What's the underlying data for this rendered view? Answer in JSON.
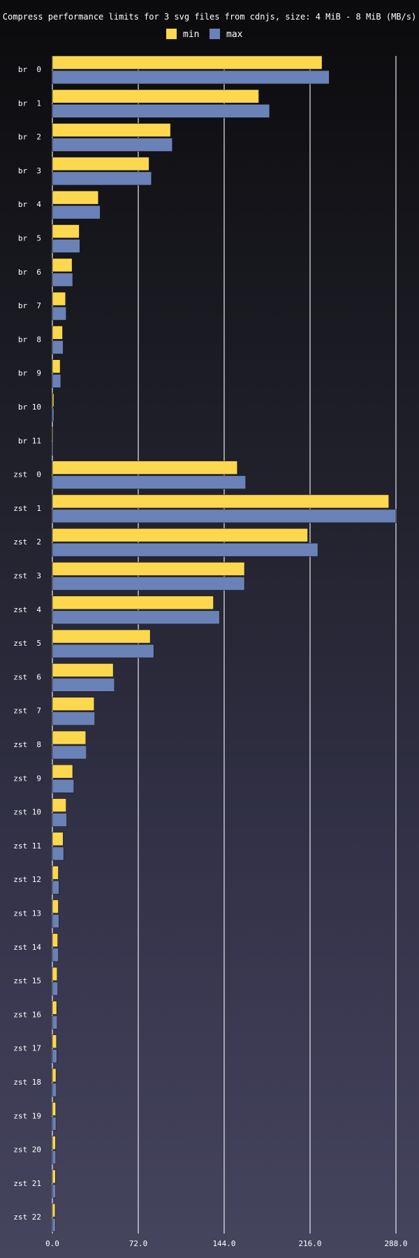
{
  "chart_data": {
    "type": "bar",
    "orientation": "horizontal",
    "title": "Compress performance limits for 3 svg files from cdnjs, size: 4 MiB - 8 MiB (MB/s)",
    "xlabel": "",
    "ylabel": "",
    "xlim": [
      0,
      288
    ],
    "ticks": [
      "0.0",
      "72.0",
      "144.0",
      "216.0",
      "288.0"
    ],
    "grid": true,
    "legend_position": "top-center",
    "categories": [
      "br  0",
      "br  1",
      "br  2",
      "br  3",
      "br  4",
      "br  5",
      "br  6",
      "br  7",
      "br  8",
      "br  9",
      "br 10",
      "br 11",
      "zst  0",
      "zst  1",
      "zst  2",
      "zst  3",
      "zst  4",
      "zst  5",
      "zst  6",
      "zst  7",
      "zst  8",
      "zst  9",
      "zst 10",
      "zst 11",
      "zst 12",
      "zst 13",
      "zst 14",
      "zst 15",
      "zst 16",
      "zst 17",
      "zst 18",
      "zst 19",
      "zst 20",
      "zst 21",
      "zst 22"
    ],
    "series": [
      {
        "name": "min",
        "color": "#fdd84e",
        "values": [
          226,
          173,
          99,
          81,
          38.5,
          22.5,
          16.5,
          11,
          8.5,
          6.5,
          1.2,
          0.6,
          155,
          282,
          214,
          161,
          135,
          82,
          51,
          35,
          28,
          17,
          11.5,
          9,
          5,
          5,
          4.5,
          4,
          3.6,
          3.4,
          3,
          2.8,
          2.6,
          2.5,
          2.3
        ]
      },
      {
        "name": "max",
        "color": "#6b82b8",
        "values": [
          232,
          182,
          100.5,
          83,
          40,
          23,
          17,
          11.5,
          9,
          7,
          1.3,
          0.7,
          162,
          288,
          222.5,
          161,
          140,
          85,
          52,
          35.5,
          28.5,
          18,
          12,
          9.5,
          5.5,
          5.5,
          5,
          4.5,
          4,
          3.7,
          3.3,
          3,
          2.8,
          2.7,
          2.5
        ]
      }
    ]
  }
}
